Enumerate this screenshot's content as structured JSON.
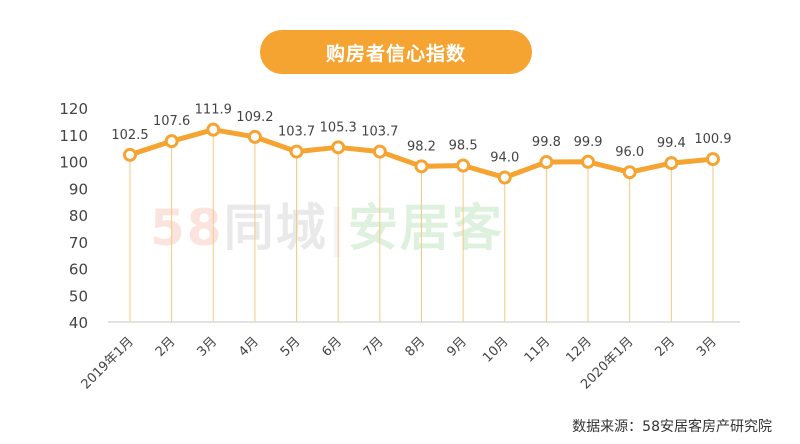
{
  "chart_data": {
    "type": "line",
    "title": "购房者信心指数",
    "categories": [
      "2019年1月",
      "2月",
      "3月",
      "4月",
      "5月",
      "6月",
      "7月",
      "8月",
      "9月",
      "10月",
      "11月",
      "12月",
      "2020年1月",
      "2月",
      "3月"
    ],
    "series": [
      {
        "name": "购房者信心指数",
        "values": [
          102.5,
          107.6,
          111.9,
          109.2,
          103.7,
          105.3,
          103.7,
          98.2,
          98.5,
          94.0,
          99.8,
          99.9,
          96.0,
          99.4,
          100.9
        ]
      }
    ],
    "ylim": [
      40,
      120
    ],
    "yticks": [
      40,
      50,
      60,
      70,
      80,
      90,
      100,
      110,
      120
    ],
    "xlabel": "",
    "ylabel": "",
    "grid": false,
    "source": "数据来源：58安居客房产研究院",
    "watermark": {
      "part1": "58同城",
      "part2": "安居客"
    }
  },
  "colors": {
    "line": "#f6a431",
    "drop": "#f5c980",
    "axis": "#d9d9d9",
    "text": "#444444"
  }
}
